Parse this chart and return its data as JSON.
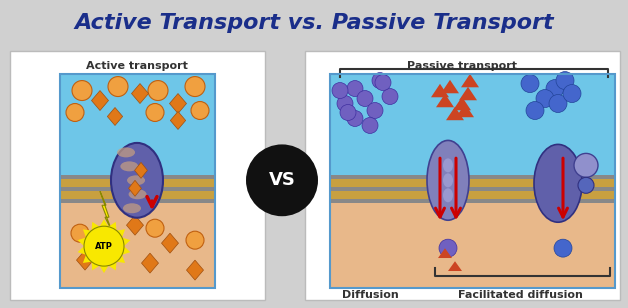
{
  "title": "Active Transport vs. Passive Transport",
  "title_color": "#1a2e8a",
  "title_bg": "#d8d8d8",
  "bg_color": "#d0d0d0",
  "panel_bg": "#ffffff",
  "active_label": "Active transport",
  "passive_label": "Passive transport",
  "diffusion_label": "Diffusion",
  "facilitated_label": "Facilitated diffusion",
  "vs_text": "VS",
  "vs_circle_color": "#111111",
  "vs_text_color": "#ffffff",
  "sky_blue": "#6ec6e8",
  "membrane_tan": "#e8b88a",
  "orange_mol": "#e07818",
  "orange_sphere": "#f0a040",
  "purple_mol": "#7060c0",
  "blue_mol": "#4466cc",
  "red_arrow": "#cc0000",
  "yellow_atp": "#f8e800",
  "membrane_dark": "#888888",
  "membrane_gold": "#c8a040",
  "prot_color": "#7070bb",
  "prot_edge": "#404090"
}
